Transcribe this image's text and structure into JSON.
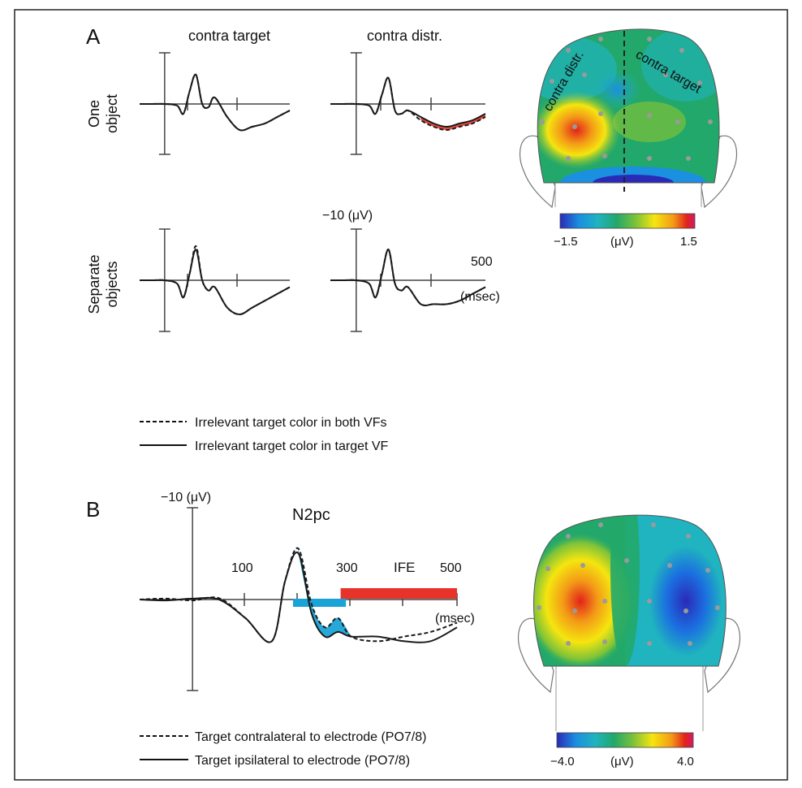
{
  "panel_a": {
    "label": "A",
    "col_titles": [
      "contra target",
      "contra distr."
    ],
    "row_titles": [
      [
        "One",
        "object"
      ],
      [
        "Separate",
        "objects"
      ]
    ],
    "scale_label": "−10 (μV)",
    "time_label": "500",
    "time_unit": "(msec)",
    "legend": [
      {
        "style": "dashed",
        "text": "Irrelevant target color in both VFs"
      },
      {
        "style": "solid",
        "text": "Irrelevant target color in target VF"
      }
    ],
    "topo": {
      "left_label": "contra distr.",
      "right_label": "contra target",
      "colorbar": {
        "min": "−1.5",
        "unit": "(μV)",
        "max": "1.5"
      }
    }
  },
  "panel_b": {
    "label": "B",
    "scale_label": "−10 (μV)",
    "component_label": "N2pc",
    "effect_label": "IFE",
    "ticks": [
      "100",
      "300",
      "500"
    ],
    "time_unit": "(msec)",
    "legend": [
      {
        "style": "dashed",
        "text": "Target contralateral to electrode (PO7/8)"
      },
      {
        "style": "solid",
        "text": "Target ipsilateral to electrode (PO7/8)"
      }
    ],
    "topo": {
      "colorbar": {
        "min": "−4.0",
        "unit": "(μV)",
        "max": "4.0"
      }
    }
  },
  "colors": {
    "ife_bar": "#e8332b",
    "n2pc_fill": "#1aa3d6",
    "trace": "#1a1a1a",
    "colormap": [
      "#2a2ab8",
      "#1b8fe0",
      "#20b3c0",
      "#22a86a",
      "#7cc23a",
      "#f5e50f",
      "#f39a17",
      "#e2231a",
      "#d11b6a"
    ]
  },
  "chart_data": [
    {
      "type": "line",
      "panel": "A",
      "title": "contra target / One object",
      "xlim": [
        -100,
        500
      ],
      "ylim": [
        -10,
        10
      ],
      "x": [
        -100,
        -50,
        0,
        50,
        75,
        100,
        125,
        150,
        175,
        200,
        250,
        300,
        350,
        400,
        450,
        500
      ],
      "series": [
        {
          "name": "Irrelevant target color in both VFs",
          "values": [
            0,
            0,
            0,
            -0.5,
            -3,
            4,
            9,
            0,
            -1,
            2,
            -4,
            -8,
            -7,
            -6,
            -4,
            -2
          ]
        },
        {
          "name": "Irrelevant target color in target VF",
          "values": [
            0,
            0,
            0,
            -0.5,
            -3,
            4,
            9,
            0,
            -1,
            2,
            -4,
            -8,
            -7,
            -6,
            -4,
            -2
          ]
        }
      ]
    },
    {
      "type": "line",
      "panel": "A",
      "title": "contra distr. / One object",
      "xlim": [
        -100,
        500
      ],
      "ylim": [
        -10,
        10
      ],
      "x": [
        -100,
        -50,
        0,
        50,
        75,
        100,
        125,
        150,
        175,
        200,
        250,
        300,
        350,
        400,
        450,
        500
      ],
      "series": [
        {
          "name": "Irrelevant target color in both VFs",
          "values": [
            0,
            0,
            0,
            -0.5,
            -3,
            3,
            8,
            -2,
            -3,
            -2,
            -5,
            -7,
            -8,
            -7,
            -6,
            -4
          ]
        },
        {
          "name": "Irrelevant target color in target VF",
          "values": [
            0,
            0,
            0,
            -0.5,
            -3,
            3,
            8,
            -2,
            -3,
            -2,
            -4,
            -6,
            -7,
            -6,
            -5,
            -3
          ]
        }
      ]
    },
    {
      "type": "line",
      "panel": "A",
      "title": "contra target / Separate objects",
      "xlim": [
        -100,
        500
      ],
      "ylim": [
        -10,
        10
      ],
      "x": [
        -100,
        -50,
        0,
        50,
        75,
        100,
        125,
        150,
        175,
        200,
        250,
        300,
        350,
        400,
        450,
        500
      ],
      "series": [
        {
          "name": "Irrelevant target color in both VFs",
          "values": [
            0,
            0,
            0,
            -1,
            -5,
            2,
            10,
            0,
            -3,
            -2,
            -8,
            -10,
            -8,
            -6,
            -4,
            -2
          ]
        },
        {
          "name": "Irrelevant target color in target VF",
          "values": [
            0,
            0,
            0,
            -1,
            -5,
            2,
            9,
            0,
            -3,
            -2,
            -8,
            -10,
            -8,
            -6,
            -4,
            -2
          ]
        }
      ]
    },
    {
      "type": "line",
      "panel": "A",
      "title": "contra distr. / Separate objects",
      "xlim": [
        -100,
        500
      ],
      "ylim": [
        -10,
        10
      ],
      "x": [
        -100,
        -50,
        0,
        50,
        75,
        100,
        125,
        150,
        175,
        200,
        250,
        300,
        350,
        400,
        450,
        500
      ],
      "series": [
        {
          "name": "Irrelevant target color in both VFs",
          "values": [
            0,
            0,
            0,
            -1,
            -5,
            2,
            9,
            -1,
            -3,
            -2,
            -7,
            -7,
            -7,
            -6,
            -4,
            -2
          ]
        },
        {
          "name": "Irrelevant target color in target VF",
          "values": [
            0,
            0,
            0,
            -1,
            -5,
            2,
            9,
            -1,
            -3,
            -2,
            -7,
            -7,
            -7,
            -6,
            -4,
            -2
          ]
        }
      ]
    },
    {
      "type": "line",
      "panel": "B",
      "title": "N2pc",
      "xlim": [
        -100,
        500
      ],
      "ylim": [
        -10,
        10
      ],
      "x": [
        -100,
        -50,
        0,
        50,
        100,
        150,
        175,
        200,
        225,
        250,
        275,
        300,
        350,
        400,
        450,
        500
      ],
      "series": [
        {
          "name": "Target contralateral to electrode (PO7/8)",
          "values": [
            0,
            0.2,
            -0.2,
            0.3,
            -4,
            -9,
            4,
            11,
            -1,
            -6,
            -4,
            -8,
            -9,
            -8,
            -7,
            -5
          ]
        },
        {
          "name": "Target ipsilateral to electrode (PO7/8)",
          "values": [
            0,
            -0.2,
            0.2,
            0,
            -4,
            -9,
            4,
            10,
            -3,
            -8,
            -7,
            -8,
            -8,
            -9,
            -9,
            -6
          ]
        }
      ],
      "annotations": [
        {
          "label": "N2pc",
          "x_range": [
            190,
            290
          ]
        },
        {
          "label": "IFE",
          "x_range": [
            280,
            500
          ]
        }
      ]
    }
  ]
}
